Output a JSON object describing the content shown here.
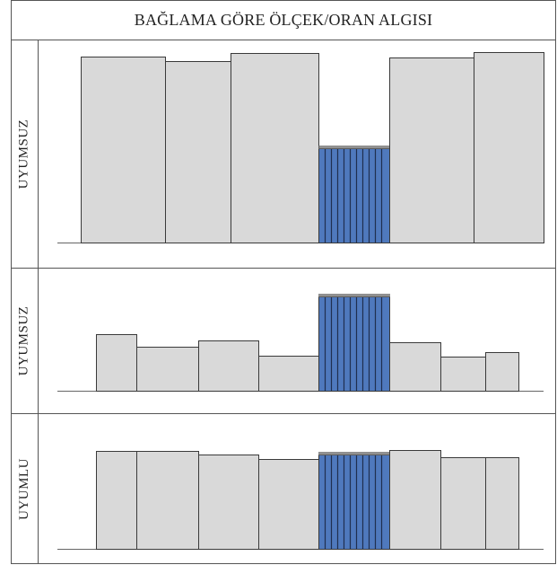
{
  "title": "BAĞLAMA GÖRE ÖLÇEK/ORAN ALGISI",
  "colors": {
    "bar_fill": "#d9d9d9",
    "bar_stroke": "#3a3a3a",
    "highlight_fill": "#4f79bd",
    "highlight_stripe": "#1f2f4f",
    "rule": "#555555"
  },
  "panels": [
    {
      "label": "UYUMSUZ",
      "bars": [
        {
          "height": 207,
          "highlighted": false
        },
        {
          "height": 202,
          "highlighted": false
        },
        {
          "height": 211,
          "highlighted": false
        },
        {
          "height": 105,
          "highlighted": true
        },
        {
          "height": 206,
          "highlighted": false
        },
        {
          "height": 212,
          "highlighted": false
        }
      ]
    },
    {
      "label": "UYUMSUZ",
      "bars": [
        {
          "height": 63,
          "highlighted": false
        },
        {
          "height": 49,
          "highlighted": false
        },
        {
          "height": 56,
          "highlighted": false
        },
        {
          "height": 39,
          "highlighted": false
        },
        {
          "height": 105,
          "highlighted": true
        },
        {
          "height": 54,
          "highlighted": false
        },
        {
          "height": 38,
          "highlighted": false
        },
        {
          "height": 43,
          "highlighted": false
        }
      ]
    },
    {
      "label": "UYUMLU",
      "bars": [
        {
          "height": 109,
          "highlighted": false
        },
        {
          "height": 109,
          "highlighted": false
        },
        {
          "height": 105,
          "highlighted": false
        },
        {
          "height": 100,
          "highlighted": false
        },
        {
          "height": 105,
          "highlighted": true
        },
        {
          "height": 110,
          "highlighted": false
        },
        {
          "height": 102,
          "highlighted": false
        },
        {
          "height": 102,
          "highlighted": false
        }
      ]
    }
  ]
}
